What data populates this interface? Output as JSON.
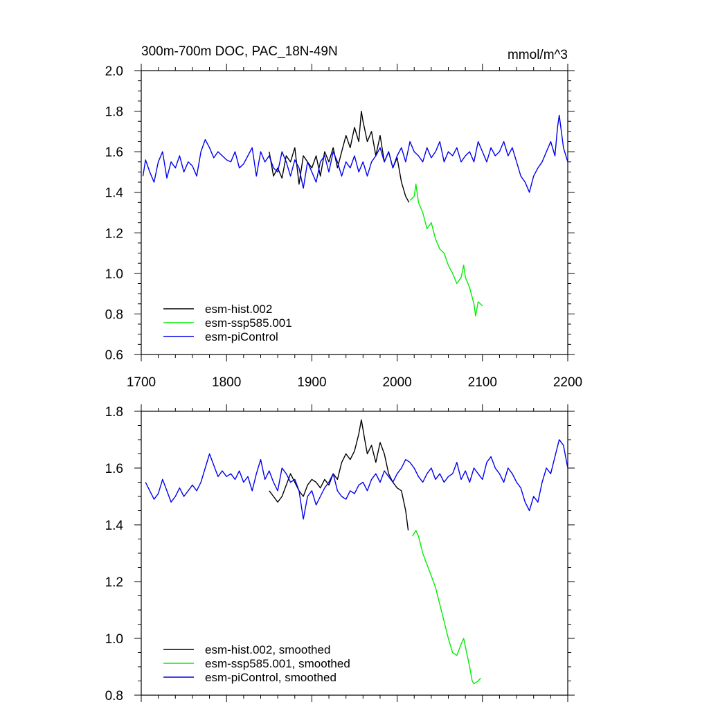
{
  "chart_data": [
    {
      "type": "line",
      "title_left": "300m-700m DOC, PAC_18N-49N",
      "title_right": "mmol/m^3",
      "xlim": [
        1700,
        2200
      ],
      "ylim": [
        0.6,
        2.0
      ],
      "x_ticks": [
        "1700",
        "1800",
        "1900",
        "2000",
        "2100",
        "2200"
      ],
      "y_ticks": [
        "0.6",
        "0.8",
        "1.0",
        "1.2",
        "1.4",
        "1.6",
        "1.8",
        "2.0"
      ],
      "legend_position": "bottom-left",
      "series": [
        {
          "name": "esm-hist.002",
          "color": "#000000",
          "x": [
            1850,
            1855,
            1860,
            1865,
            1870,
            1875,
            1880,
            1885,
            1890,
            1895,
            1900,
            1905,
            1910,
            1915,
            1920,
            1925,
            1930,
            1935,
            1940,
            1945,
            1950,
            1955,
            1958,
            1960,
            1965,
            1970,
            1975,
            1980,
            1985,
            1990,
            1995,
            2000,
            2005,
            2010,
            2014
          ],
          "y": [
            1.6,
            1.48,
            1.52,
            1.47,
            1.58,
            1.55,
            1.62,
            1.44,
            1.58,
            1.55,
            1.52,
            1.58,
            1.48,
            1.6,
            1.55,
            1.62,
            1.52,
            1.6,
            1.68,
            1.62,
            1.72,
            1.65,
            1.8,
            1.75,
            1.65,
            1.7,
            1.58,
            1.68,
            1.55,
            1.6,
            1.52,
            1.57,
            1.45,
            1.38,
            1.35
          ]
        },
        {
          "name": "esm-ssp585.001",
          "color": "#00ee00",
          "x": [
            2015,
            2020,
            2022,
            2025,
            2030,
            2035,
            2040,
            2045,
            2050,
            2055,
            2060,
            2065,
            2070,
            2075,
            2078,
            2080,
            2085,
            2090,
            2092,
            2095,
            2100
          ],
          "y": [
            1.36,
            1.38,
            1.44,
            1.35,
            1.3,
            1.22,
            1.25,
            1.17,
            1.12,
            1.1,
            1.04,
            1.0,
            0.95,
            0.98,
            1.04,
            0.98,
            0.93,
            0.85,
            0.79,
            0.86,
            0.84
          ]
        },
        {
          "name": "esm-piControl",
          "color": "#0000ee",
          "x": [
            1702,
            1705,
            1710,
            1715,
            1720,
            1725,
            1730,
            1735,
            1740,
            1745,
            1750,
            1755,
            1760,
            1765,
            1770,
            1775,
            1780,
            1785,
            1790,
            1795,
            1800,
            1805,
            1810,
            1815,
            1820,
            1825,
            1830,
            1835,
            1840,
            1845,
            1850,
            1855,
            1860,
            1865,
            1870,
            1875,
            1880,
            1885,
            1890,
            1895,
            1900,
            1905,
            1910,
            1915,
            1920,
            1925,
            1930,
            1935,
            1940,
            1945,
            1950,
            1955,
            1960,
            1965,
            1970,
            1975,
            1980,
            1985,
            1990,
            1995,
            2000,
            2005,
            2010,
            2015,
            2020,
            2025,
            2030,
            2035,
            2040,
            2045,
            2050,
            2055,
            2060,
            2065,
            2070,
            2075,
            2080,
            2085,
            2090,
            2095,
            2100,
            2105,
            2110,
            2115,
            2120,
            2125,
            2130,
            2135,
            2140,
            2145,
            2150,
            2155,
            2160,
            2165,
            2170,
            2175,
            2180,
            2185,
            2188,
            2190,
            2195,
            2200
          ],
          "y": [
            1.48,
            1.56,
            1.5,
            1.45,
            1.55,
            1.6,
            1.47,
            1.55,
            1.52,
            1.58,
            1.5,
            1.55,
            1.53,
            1.48,
            1.6,
            1.66,
            1.62,
            1.57,
            1.6,
            1.58,
            1.56,
            1.55,
            1.6,
            1.52,
            1.54,
            1.58,
            1.62,
            1.48,
            1.6,
            1.55,
            1.58,
            1.52,
            1.5,
            1.6,
            1.55,
            1.48,
            1.56,
            1.52,
            1.42,
            1.55,
            1.5,
            1.45,
            1.55,
            1.58,
            1.5,
            1.6,
            1.55,
            1.48,
            1.55,
            1.52,
            1.58,
            1.5,
            1.55,
            1.48,
            1.55,
            1.58,
            1.62,
            1.55,
            1.6,
            1.52,
            1.58,
            1.62,
            1.55,
            1.65,
            1.6,
            1.58,
            1.55,
            1.62,
            1.57,
            1.6,
            1.65,
            1.55,
            1.6,
            1.58,
            1.62,
            1.55,
            1.58,
            1.6,
            1.55,
            1.65,
            1.6,
            1.55,
            1.62,
            1.58,
            1.6,
            1.65,
            1.58,
            1.62,
            1.55,
            1.48,
            1.45,
            1.4,
            1.48,
            1.52,
            1.55,
            1.6,
            1.65,
            1.58,
            1.72,
            1.78,
            1.62,
            1.55
          ]
        }
      ]
    },
    {
      "type": "line",
      "xlim": [
        1700,
        2200
      ],
      "ylim": [
        0.8,
        1.8
      ],
      "y_ticks": [
        "0.8",
        "1.0",
        "1.2",
        "1.4",
        "1.6",
        "1.8"
      ],
      "legend_position": "bottom-left",
      "series": [
        {
          "name": "esm-hist.002, smoothed",
          "color": "#000000",
          "x": [
            1850,
            1855,
            1860,
            1865,
            1870,
            1875,
            1880,
            1885,
            1890,
            1895,
            1900,
            1905,
            1910,
            1915,
            1920,
            1925,
            1930,
            1935,
            1940,
            1945,
            1950,
            1955,
            1958,
            1962,
            1965,
            1970,
            1975,
            1980,
            1985,
            1990,
            1995,
            2000,
            2005,
            2010,
            2013
          ],
          "y": [
            1.52,
            1.5,
            1.48,
            1.5,
            1.54,
            1.58,
            1.55,
            1.52,
            1.5,
            1.54,
            1.56,
            1.55,
            1.53,
            1.56,
            1.54,
            1.58,
            1.56,
            1.62,
            1.65,
            1.63,
            1.66,
            1.72,
            1.77,
            1.7,
            1.65,
            1.68,
            1.62,
            1.69,
            1.65,
            1.58,
            1.55,
            1.53,
            1.52,
            1.45,
            1.38
          ]
        },
        {
          "name": "esm-ssp585.001, smoothed",
          "color": "#00ee00",
          "x": [
            2018,
            2022,
            2025,
            2030,
            2035,
            2040,
            2045,
            2050,
            2055,
            2060,
            2065,
            2070,
            2075,
            2078,
            2080,
            2085,
            2088,
            2090,
            2095,
            2098
          ],
          "y": [
            1.36,
            1.38,
            1.36,
            1.3,
            1.26,
            1.22,
            1.18,
            1.12,
            1.06,
            1.0,
            0.95,
            0.94,
            0.98,
            1.0,
            0.97,
            0.9,
            0.85,
            0.84,
            0.85,
            0.86
          ]
        },
        {
          "name": "esm-piControl, smoothed",
          "color": "#0000ee",
          "x": [
            1705,
            1710,
            1715,
            1720,
            1725,
            1730,
            1735,
            1740,
            1745,
            1750,
            1755,
            1760,
            1765,
            1770,
            1775,
            1780,
            1785,
            1790,
            1795,
            1800,
            1805,
            1810,
            1815,
            1820,
            1825,
            1830,
            1835,
            1840,
            1845,
            1850,
            1855,
            1860,
            1865,
            1870,
            1875,
            1880,
            1885,
            1890,
            1895,
            1900,
            1905,
            1910,
            1915,
            1920,
            1925,
            1930,
            1935,
            1940,
            1945,
            1950,
            1955,
            1960,
            1965,
            1970,
            1975,
            1980,
            1985,
            1990,
            1995,
            2000,
            2005,
            2010,
            2015,
            2020,
            2025,
            2030,
            2035,
            2040,
            2045,
            2050,
            2055,
            2060,
            2065,
            2070,
            2075,
            2080,
            2085,
            2090,
            2095,
            2100,
            2105,
            2110,
            2115,
            2120,
            2125,
            2130,
            2135,
            2140,
            2145,
            2150,
            2155,
            2160,
            2165,
            2170,
            2175,
            2180,
            2185,
            2190,
            2195,
            2200
          ],
          "y": [
            1.55,
            1.52,
            1.49,
            1.51,
            1.56,
            1.52,
            1.48,
            1.5,
            1.53,
            1.5,
            1.52,
            1.54,
            1.52,
            1.55,
            1.6,
            1.65,
            1.61,
            1.57,
            1.59,
            1.57,
            1.58,
            1.56,
            1.59,
            1.55,
            1.57,
            1.52,
            1.58,
            1.63,
            1.56,
            1.59,
            1.55,
            1.52,
            1.6,
            1.58,
            1.55,
            1.56,
            1.52,
            1.42,
            1.5,
            1.52,
            1.47,
            1.5,
            1.53,
            1.55,
            1.58,
            1.52,
            1.5,
            1.49,
            1.52,
            1.51,
            1.54,
            1.55,
            1.52,
            1.56,
            1.58,
            1.55,
            1.59,
            1.57,
            1.55,
            1.58,
            1.6,
            1.63,
            1.62,
            1.6,
            1.57,
            1.55,
            1.58,
            1.6,
            1.56,
            1.58,
            1.55,
            1.57,
            1.58,
            1.62,
            1.56,
            1.59,
            1.55,
            1.6,
            1.58,
            1.56,
            1.62,
            1.64,
            1.6,
            1.58,
            1.55,
            1.6,
            1.58,
            1.55,
            1.53,
            1.48,
            1.45,
            1.5,
            1.48,
            1.55,
            1.6,
            1.58,
            1.64,
            1.7,
            1.68,
            1.6
          ]
        }
      ]
    }
  ]
}
